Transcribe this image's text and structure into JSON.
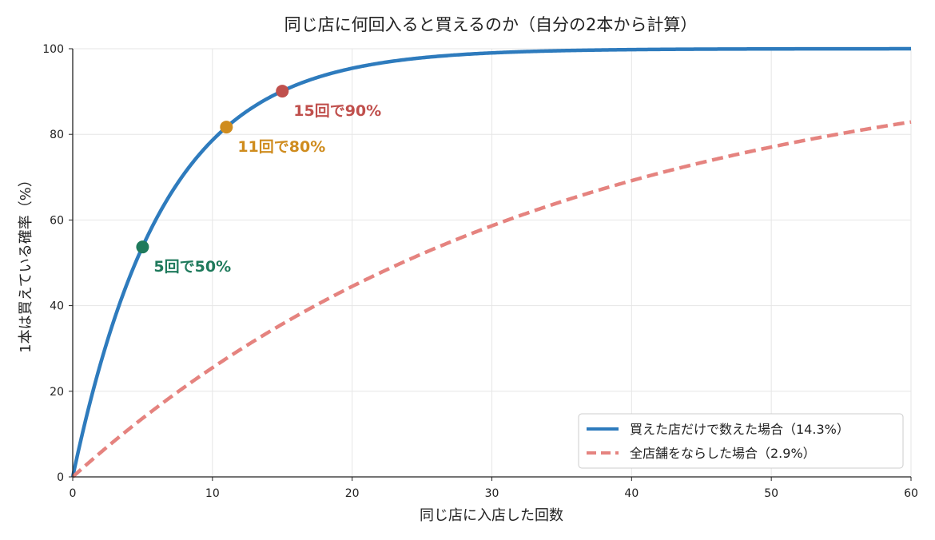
{
  "chart_data": {
    "type": "line",
    "title": "同じ店に何回入ると買えるのか（自分の2本から計算）",
    "xlabel": "同じ店に入店した回数",
    "ylabel": "1本は買えている確率（%）",
    "xlim": [
      0,
      60
    ],
    "ylim": [
      0,
      100
    ],
    "xticks": [
      0,
      10,
      20,
      30,
      40,
      50,
      60
    ],
    "yticks": [
      0,
      20,
      40,
      60,
      80,
      100
    ],
    "grid": true,
    "legend_position": "bottom-right",
    "series": [
      {
        "name": "買えた店だけで数えた場合（14.3%）",
        "p": 0.143,
        "color": "#2e7bbd",
        "style": "solid"
      },
      {
        "name": "全店舗をならした場合（2.9%）",
        "p": 0.029,
        "color": "#e5837f",
        "style": "dashed"
      }
    ],
    "markers": [
      {
        "x": 5,
        "y": 53.7,
        "label": "5回で50%",
        "color": "#1f7a5c"
      },
      {
        "x": 11,
        "y": 81.7,
        "label": "11回で80%",
        "color": "#cf8c1e"
      },
      {
        "x": 15,
        "y": 90.1,
        "label": "15回で90%",
        "color": "#c0504d"
      }
    ]
  }
}
